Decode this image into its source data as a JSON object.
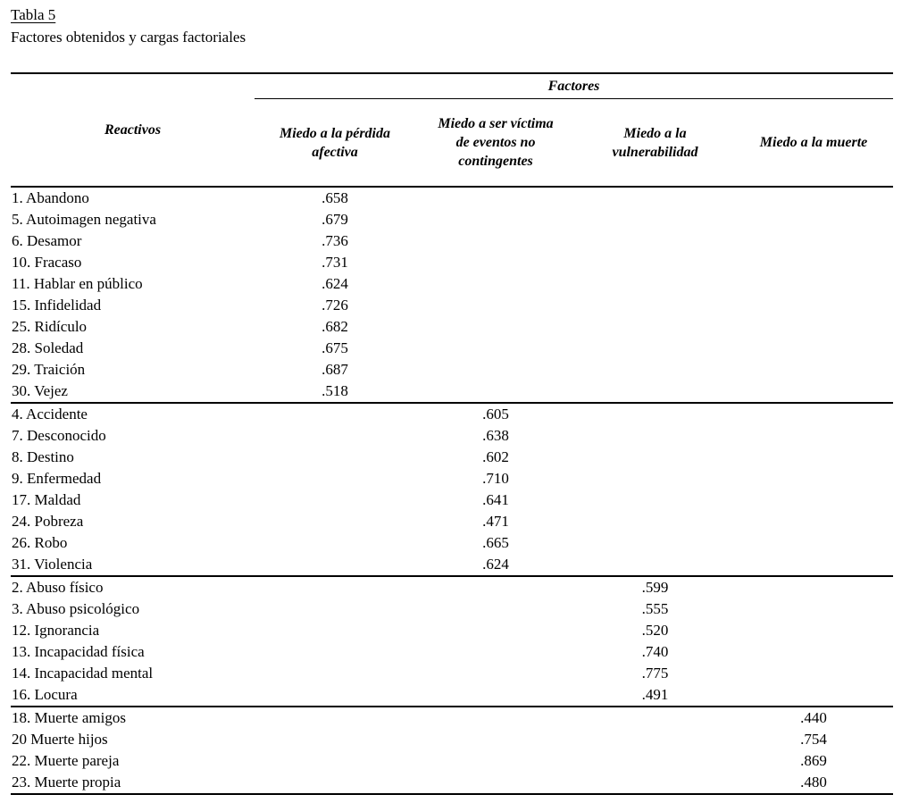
{
  "title": "Tabla 5",
  "subtitle": "Factores obtenidos y cargas factoriales",
  "table": {
    "factors_group_header": "Factores",
    "reactivos_header": "Reactivos",
    "factor_columns": [
      "Miedo a la pérdida\nafectiva",
      "Miedo a ser víctima\nde eventos no\ncontingentes",
      "Miedo a la\nvulnerabilidad",
      "Miedo a la muerte"
    ],
    "groups": [
      {
        "factor": "Miedo a la pérdida afectiva",
        "rows": [
          {
            "label": "1. Abandono",
            "values": [
              ".658",
              "",
              "",
              ""
            ]
          },
          {
            "label": "5. Autoimagen negativa",
            "values": [
              ".679",
              "",
              "",
              ""
            ]
          },
          {
            "label": "6. Desamor",
            "values": [
              ".736",
              "",
              "",
              ""
            ]
          },
          {
            "label": "10. Fracaso",
            "values": [
              ".731",
              "",
              "",
              ""
            ]
          },
          {
            "label": "11. Hablar en público",
            "values": [
              ".624",
              "",
              "",
              ""
            ]
          },
          {
            "label": "15. Infidelidad",
            "values": [
              ".726",
              "",
              "",
              ""
            ]
          },
          {
            "label": "25. Ridículo",
            "values": [
              ".682",
              "",
              "",
              ""
            ]
          },
          {
            "label": "28. Soledad",
            "values": [
              ".675",
              "",
              "",
              ""
            ]
          },
          {
            "label": "29. Traición",
            "values": [
              ".687",
              "",
              "",
              ""
            ]
          },
          {
            "label": "30. Vejez",
            "values": [
              ".518",
              "",
              "",
              ""
            ]
          }
        ]
      },
      {
        "factor": "Miedo a ser víctima de eventos no contingentes",
        "rows": [
          {
            "label": "4. Accidente",
            "values": [
              "",
              ".605",
              "",
              ""
            ]
          },
          {
            "label": "7. Desconocido",
            "values": [
              "",
              ".638",
              "",
              ""
            ]
          },
          {
            "label": "8. Destino",
            "values": [
              "",
              ".602",
              "",
              ""
            ]
          },
          {
            "label": "9. Enfermedad",
            "values": [
              "",
              ".710",
              "",
              ""
            ]
          },
          {
            "label": "17. Maldad",
            "values": [
              "",
              ".641",
              "",
              ""
            ]
          },
          {
            "label": "24. Pobreza",
            "values": [
              "",
              ".471",
              "",
              ""
            ]
          },
          {
            "label": "26. Robo",
            "values": [
              "",
              ".665",
              "",
              ""
            ]
          },
          {
            "label": "31. Violencia",
            "values": [
              "",
              ".624",
              "",
              ""
            ]
          }
        ]
      },
      {
        "factor": "Miedo a la vulnerabilidad",
        "rows": [
          {
            "label": "2. Abuso físico",
            "values": [
              "",
              "",
              ".599",
              ""
            ]
          },
          {
            "label": "3. Abuso psicológico",
            "values": [
              "",
              "",
              ".555",
              ""
            ]
          },
          {
            "label": "12. Ignorancia",
            "values": [
              "",
              "",
              ".520",
              ""
            ]
          },
          {
            "label": "13. Incapacidad física",
            "values": [
              "",
              "",
              ".740",
              ""
            ]
          },
          {
            "label": "14. Incapacidad mental",
            "values": [
              "",
              "",
              ".775",
              ""
            ]
          },
          {
            "label": "16. Locura",
            "values": [
              "",
              "",
              ".491",
              ""
            ]
          }
        ]
      },
      {
        "factor": "Miedo a la muerte",
        "rows": [
          {
            "label": "18. Muerte amigos",
            "values": [
              "",
              "",
              "",
              ".440"
            ]
          },
          {
            "label": "20 Muerte hijos",
            "values": [
              "",
              "",
              "",
              ".754"
            ]
          },
          {
            "label": "22. Muerte pareja",
            "values": [
              "",
              "",
              "",
              ".869"
            ]
          },
          {
            "label": "23. Muerte propia",
            "values": [
              "",
              "",
              "",
              ".480"
            ]
          }
        ]
      }
    ]
  }
}
